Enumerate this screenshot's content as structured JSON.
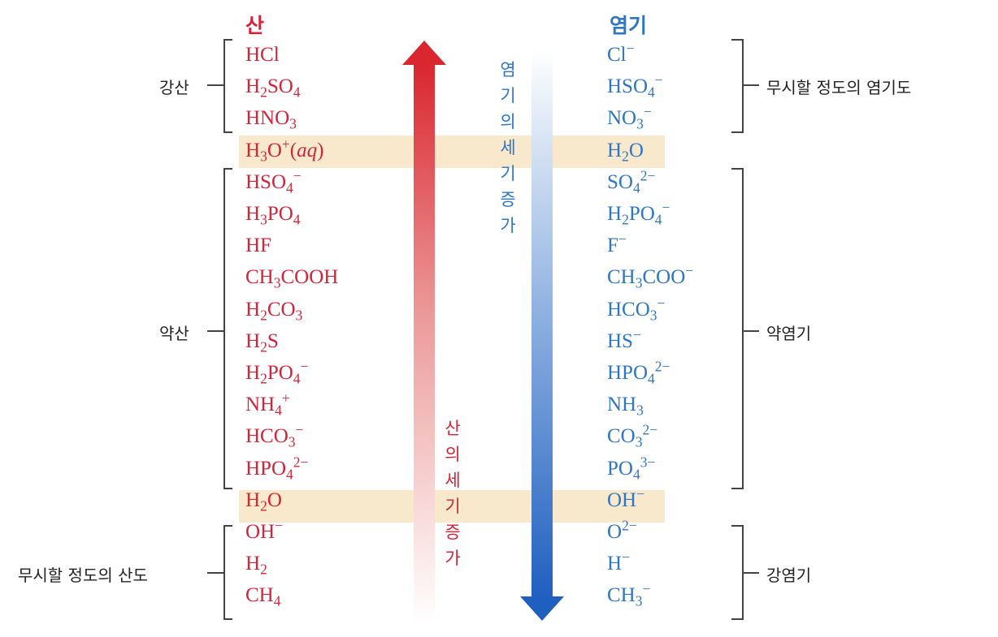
{
  "headers": {
    "acid": "산",
    "base": "염기"
  },
  "acids": [
    {
      "key": "hcl",
      "parts": [
        [
          "t",
          "HCl"
        ]
      ]
    },
    {
      "key": "h2so4",
      "parts": [
        [
          "t",
          "H"
        ],
        [
          "sub",
          "2"
        ],
        [
          "t",
          "SO"
        ],
        [
          "sub",
          "4"
        ]
      ]
    },
    {
      "key": "hno3",
      "parts": [
        [
          "t",
          "HNO"
        ],
        [
          "sub",
          "3"
        ]
      ]
    },
    {
      "key": "h3o",
      "parts": [
        [
          "t",
          "H"
        ],
        [
          "sub",
          "3"
        ],
        [
          "t",
          "O"
        ],
        [
          "sup",
          "+"
        ],
        [
          "t",
          "("
        ],
        [
          "i",
          "aq"
        ],
        [
          "t",
          ")"
        ]
      ]
    },
    {
      "key": "hso4",
      "parts": [
        [
          "t",
          "HSO"
        ],
        [
          "sub",
          "4"
        ],
        [
          "sup",
          "−"
        ]
      ]
    },
    {
      "key": "h3po4",
      "parts": [
        [
          "t",
          "H"
        ],
        [
          "sub",
          "3"
        ],
        [
          "t",
          "PO"
        ],
        [
          "sub",
          "4"
        ]
      ]
    },
    {
      "key": "hf",
      "parts": [
        [
          "t",
          "HF"
        ]
      ]
    },
    {
      "key": "ch3cooh",
      "parts": [
        [
          "t",
          "CH"
        ],
        [
          "sub",
          "3"
        ],
        [
          "t",
          "COOH"
        ]
      ]
    },
    {
      "key": "h2co3",
      "parts": [
        [
          "t",
          "H"
        ],
        [
          "sub",
          "2"
        ],
        [
          "t",
          "CO"
        ],
        [
          "sub",
          "3"
        ]
      ]
    },
    {
      "key": "h2s",
      "parts": [
        [
          "t",
          "H"
        ],
        [
          "sub",
          "2"
        ],
        [
          "t",
          "S"
        ]
      ]
    },
    {
      "key": "h2po4",
      "parts": [
        [
          "t",
          "H"
        ],
        [
          "sub",
          "2"
        ],
        [
          "t",
          "PO"
        ],
        [
          "sub",
          "4"
        ],
        [
          "sup",
          "−"
        ]
      ]
    },
    {
      "key": "nh4",
      "parts": [
        [
          "t",
          "NH"
        ],
        [
          "sub",
          "4"
        ],
        [
          "sup",
          "+"
        ]
      ]
    },
    {
      "key": "hco3",
      "parts": [
        [
          "t",
          "HCO"
        ],
        [
          "sub",
          "3"
        ],
        [
          "sup",
          "−"
        ]
      ]
    },
    {
      "key": "hpo4",
      "parts": [
        [
          "t",
          "HPO"
        ],
        [
          "sub",
          "4"
        ],
        [
          "sup",
          "2−"
        ]
      ]
    },
    {
      "key": "h2o",
      "parts": [
        [
          "t",
          "H"
        ],
        [
          "sub",
          "2"
        ],
        [
          "t",
          "O"
        ]
      ]
    },
    {
      "key": "oh",
      "parts": [
        [
          "t",
          "OH"
        ],
        [
          "sup",
          "−"
        ]
      ]
    },
    {
      "key": "h2",
      "parts": [
        [
          "t",
          "H"
        ],
        [
          "sub",
          "2"
        ]
      ]
    },
    {
      "key": "ch4",
      "parts": [
        [
          "t",
          "CH"
        ],
        [
          "sub",
          "4"
        ]
      ]
    }
  ],
  "bases": [
    {
      "key": "cl",
      "parts": [
        [
          "t",
          "Cl"
        ],
        [
          "sup",
          "−"
        ]
      ]
    },
    {
      "key": "hso4",
      "parts": [
        [
          "t",
          "HSO"
        ],
        [
          "sub",
          "4"
        ],
        [
          "sup",
          "−"
        ]
      ]
    },
    {
      "key": "no3",
      "parts": [
        [
          "t",
          "NO"
        ],
        [
          "sub",
          "3"
        ],
        [
          "sup",
          "−"
        ]
      ]
    },
    {
      "key": "h2o",
      "parts": [
        [
          "t",
          "H"
        ],
        [
          "sub",
          "2"
        ],
        [
          "t",
          "O"
        ]
      ]
    },
    {
      "key": "so4",
      "parts": [
        [
          "t",
          "SO"
        ],
        [
          "sub",
          "4"
        ],
        [
          "sup",
          "2−"
        ]
      ]
    },
    {
      "key": "h2po4",
      "parts": [
        [
          "t",
          "H"
        ],
        [
          "sub",
          "2"
        ],
        [
          "t",
          "PO"
        ],
        [
          "sub",
          "4"
        ],
        [
          "sup",
          "−"
        ]
      ]
    },
    {
      "key": "f",
      "parts": [
        [
          "t",
          "F"
        ],
        [
          "sup",
          "−"
        ]
      ]
    },
    {
      "key": "ch3coo",
      "parts": [
        [
          "t",
          "CH"
        ],
        [
          "sub",
          "3"
        ],
        [
          "t",
          "COO"
        ],
        [
          "sup",
          "−"
        ]
      ]
    },
    {
      "key": "hco3",
      "parts": [
        [
          "t",
          "HCO"
        ],
        [
          "sub",
          "3"
        ],
        [
          "sup",
          "−"
        ]
      ]
    },
    {
      "key": "hs",
      "parts": [
        [
          "t",
          "HS"
        ],
        [
          "sup",
          "−"
        ]
      ]
    },
    {
      "key": "hpo4",
      "parts": [
        [
          "t",
          "HPO"
        ],
        [
          "sub",
          "4"
        ],
        [
          "sup",
          "2−"
        ]
      ]
    },
    {
      "key": "nh3",
      "parts": [
        [
          "t",
          "NH"
        ],
        [
          "sub",
          "3"
        ]
      ]
    },
    {
      "key": "co3",
      "parts": [
        [
          "t",
          "CO"
        ],
        [
          "sub",
          "3"
        ],
        [
          "sup",
          "2−"
        ]
      ]
    },
    {
      "key": "po4",
      "parts": [
        [
          "t",
          "PO"
        ],
        [
          "sub",
          "4"
        ],
        [
          "sup",
          "3−"
        ]
      ]
    },
    {
      "key": "oh",
      "parts": [
        [
          "t",
          "OH"
        ],
        [
          "sup",
          "−"
        ]
      ]
    },
    {
      "key": "o",
      "parts": [
        [
          "t",
          "O"
        ],
        [
          "sup",
          "2−"
        ]
      ]
    },
    {
      "key": "h",
      "parts": [
        [
          "t",
          "H"
        ],
        [
          "sup",
          "−"
        ]
      ]
    },
    {
      "key": "ch3",
      "parts": [
        [
          "t",
          "CH"
        ],
        [
          "sub",
          "3"
        ],
        [
          "sup",
          "−"
        ]
      ]
    }
  ],
  "labels": {
    "strong_acid": "강산",
    "weak_acid": "약산",
    "negligible_acid": "무시할 정도의 산도",
    "negligible_base": "무시할 정도의 염기도",
    "weak_base": "약염기",
    "strong_base": "강염기"
  },
  "arrows": {
    "base_strength": [
      "염",
      "기",
      "의",
      "세",
      "기",
      "증",
      "가"
    ],
    "acid_strength": [
      "산",
      "의",
      "세",
      "기",
      "증",
      "가"
    ]
  },
  "colors": {
    "acid": "#d3243a",
    "base": "#2f76c4",
    "highlight": "#f8e9cd",
    "acid_arrow": "#d9262f",
    "base_arrow": "#1f5fc0"
  }
}
